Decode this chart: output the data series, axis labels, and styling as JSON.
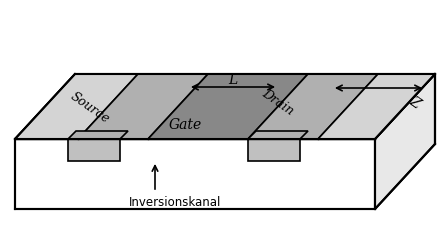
{
  "bg_color": "#ffffff",
  "label_source": "Source",
  "label_drain": "Drain",
  "label_gate": "Gate",
  "label_L": "L",
  "label_Z": "Z",
  "label_inv": "Inversionskanal",
  "color_white": "#ffffff",
  "color_light_gray": "#d4d4d4",
  "color_med_gray": "#b0b0b0",
  "color_dark_gray": "#888888",
  "color_right_face": "#e8e8e8",
  "color_contact": "#c0c0c0",
  "color_black": "#000000"
}
